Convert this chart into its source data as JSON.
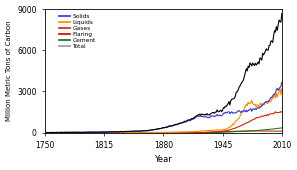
{
  "title": "",
  "xlabel": "Year",
  "ylabel": "Million Metric Tons of Carbon",
  "xlim": [
    1750,
    2010
  ],
  "ylim": [
    0,
    9000
  ],
  "yticks": [
    0,
    3000,
    6000,
    9000
  ],
  "xticks": [
    1750,
    1815,
    1880,
    1945,
    2010
  ],
  "legend": [
    {
      "label": "Solids",
      "color": "#3333cc"
    },
    {
      "label": "Liquids",
      "color": "#ff8800"
    },
    {
      "label": "Gases",
      "color": "#cc2200"
    },
    {
      "label": "Flaring",
      "color": "#cc0000"
    },
    {
      "label": "Cement",
      "color": "#007700"
    },
    {
      "label": "Total",
      "color": "#999999"
    }
  ],
  "total_color": "#000000",
  "background_color": "#ffffff",
  "axis_bg": "#ffffff"
}
